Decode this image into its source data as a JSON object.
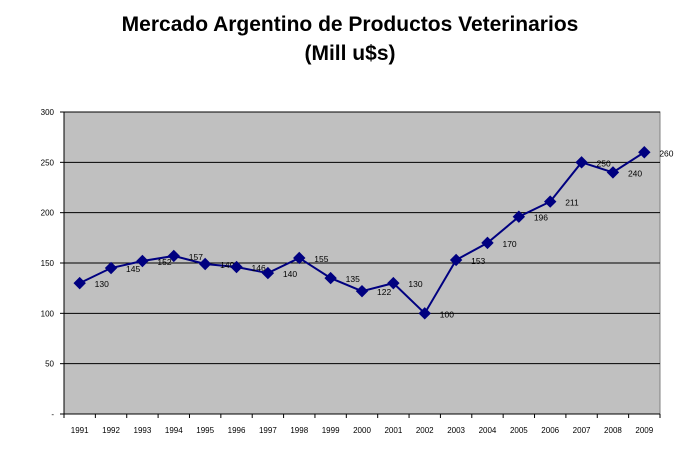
{
  "chart_data": {
    "type": "line",
    "title": "Mercado Argentino de Productos Veterinarios",
    "subtitle": "(Mill u$s)",
    "xlabel": "",
    "ylabel": "",
    "x": [
      "1991",
      "1992",
      "1993",
      "1994",
      "1995",
      "1996",
      "1997",
      "1998",
      "1999",
      "2000",
      "2001",
      "2002",
      "2003",
      "2004",
      "2005",
      "2006",
      "2007",
      "2008",
      "2009"
    ],
    "series": [
      {
        "values": [
          130,
          145,
          152,
          157,
          149,
          146,
          140,
          155,
          135,
          122,
          130,
          100,
          153,
          170,
          196,
          211,
          250,
          240,
          260
        ],
        "labels": [
          "130",
          "145",
          "152",
          "157",
          "149",
          "146",
          "140",
          "155",
          "135",
          "122",
          "130",
          "100",
          "153",
          "170",
          "196",
          "211",
          "250",
          "240",
          "260"
        ]
      }
    ],
    "ylim": [
      0,
      300
    ],
    "yticks": [
      "-",
      "50",
      "100",
      "150",
      "200",
      "250",
      "300"
    ],
    "grid": true,
    "plot_background": "#c0c0c0",
    "line_color": "#000080",
    "marker": "diamond"
  }
}
